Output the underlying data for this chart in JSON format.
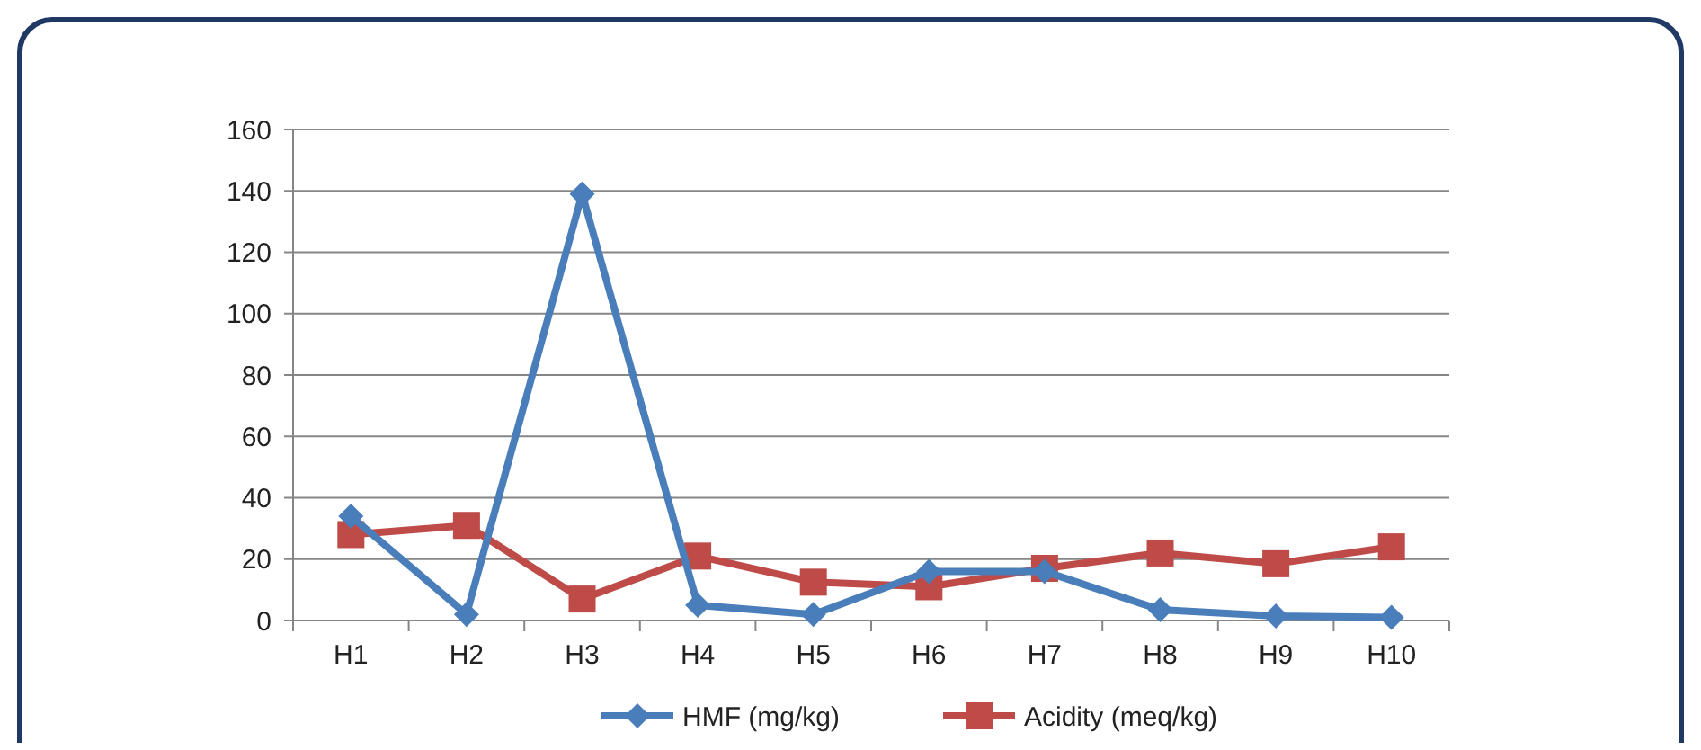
{
  "chart_data": {
    "type": "line",
    "categories": [
      "H1",
      "H2",
      "H3",
      "H4",
      "H5",
      "H6",
      "H7",
      "H8",
      "H9",
      "H10"
    ],
    "series": [
      {
        "name": "HMF (mg/kg)",
        "color": "#4a7ebb",
        "marker": "diamond",
        "values": [
          34,
          2,
          139,
          5,
          2,
          16,
          16,
          3.5,
          1.5,
          1
        ]
      },
      {
        "name": "Acidity (meq/kg)",
        "color": "#be4b48",
        "marker": "square",
        "values": [
          28,
          31,
          7,
          21,
          12.5,
          11,
          17,
          22,
          18.5,
          24
        ]
      }
    ],
    "ylim": [
      0,
      160
    ],
    "yticks": [
      0,
      20,
      40,
      60,
      80,
      100,
      120,
      140,
      160
    ],
    "grid": "y",
    "legend": "bottom"
  }
}
